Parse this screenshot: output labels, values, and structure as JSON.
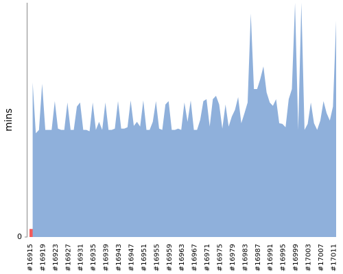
{
  "chart_data": {
    "type": "area",
    "y_label": "mins",
    "categories": [
      "#16915",
      null,
      null,
      null,
      "#16919",
      null,
      null,
      null,
      "#16923",
      null,
      null,
      null,
      "#16927",
      null,
      null,
      null,
      "#16931",
      null,
      null,
      null,
      "#16935",
      null,
      null,
      null,
      "#16939",
      null,
      null,
      null,
      "#16943",
      null,
      null,
      null,
      "#16947",
      null,
      null,
      null,
      "#16951",
      null,
      null,
      null,
      "#16955",
      null,
      null,
      null,
      "#16959",
      null,
      null,
      null,
      "#16963",
      null,
      null,
      null,
      "#16967",
      null,
      null,
      null,
      "#16971",
      null,
      null,
      null,
      "#16975",
      null,
      null,
      null,
      "#16979",
      null,
      null,
      null,
      "#16983",
      null,
      null,
      null,
      "#16987",
      null,
      null,
      null,
      "#16991",
      null,
      null,
      null,
      "#16995",
      null,
      null,
      null,
      "#16999",
      null,
      null,
      null,
      "#17003",
      null,
      null,
      null,
      "#17007",
      null,
      null,
      null,
      "#17011",
      null
    ],
    "series": [
      {
        "color": "#f45b5b",
        "values": [
          1.2,
          null,
          null,
          null,
          null,
          null,
          null,
          null,
          null,
          null,
          null,
          null,
          null,
          null,
          null,
          null,
          null,
          null,
          null,
          null,
          null,
          null,
          null,
          null,
          null,
          null,
          null,
          null,
          null,
          null,
          null,
          null,
          null,
          null,
          null,
          null,
          null,
          null,
          null,
          null,
          null,
          null,
          null,
          null,
          null,
          null,
          null,
          null,
          null,
          null,
          null,
          null,
          null,
          null,
          null,
          null,
          null,
          null,
          null,
          null,
          null,
          null,
          null,
          null,
          null,
          null,
          null,
          null,
          null,
          null,
          null,
          null,
          null,
          null,
          null,
          null,
          null,
          null,
          null,
          null,
          null,
          null,
          null,
          null,
          null,
          null,
          null,
          null,
          null,
          null,
          null,
          null,
          null,
          null,
          null,
          null,
          null,
          null
        ]
      },
      {
        "color": "#8fb0db",
        "values": [
          null,
          23.1,
          15.5,
          16,
          22.9,
          16,
          16,
          16,
          20.3,
          16.2,
          16,
          16,
          20.1,
          16,
          16,
          19.5,
          20.1,
          16,
          16,
          15.8,
          20.1,
          16,
          17.2,
          16,
          20.1,
          16,
          16,
          16.2,
          20.3,
          16.2,
          16.2,
          16.4,
          20.4,
          16.6,
          17.2,
          16.5,
          20.4,
          16,
          16,
          17.2,
          20.3,
          16.2,
          16,
          19.8,
          20.3,
          16,
          16,
          16.2,
          16,
          20.1,
          17.2,
          20.4,
          16,
          16,
          17.5,
          20.3,
          20.6,
          16.5,
          20.6,
          21.1,
          19.8,
          16.2,
          19.8,
          16.5,
          18,
          19,
          20.9,
          17,
          18.5,
          20.1,
          33.4,
          22.1,
          22.1,
          23.6,
          25.5,
          21.6,
          20.1,
          19.6,
          20.6,
          17,
          16.9,
          16.4,
          20.6,
          22.1,
          35,
          16,
          35,
          16,
          16.9,
          20.1,
          17,
          16,
          17.4,
          20.3,
          18.5,
          17.4,
          19.5,
          32.3
        ]
      }
    ],
    "ylim": [
      0,
      35
    ],
    "yticks": [
      0
    ]
  }
}
